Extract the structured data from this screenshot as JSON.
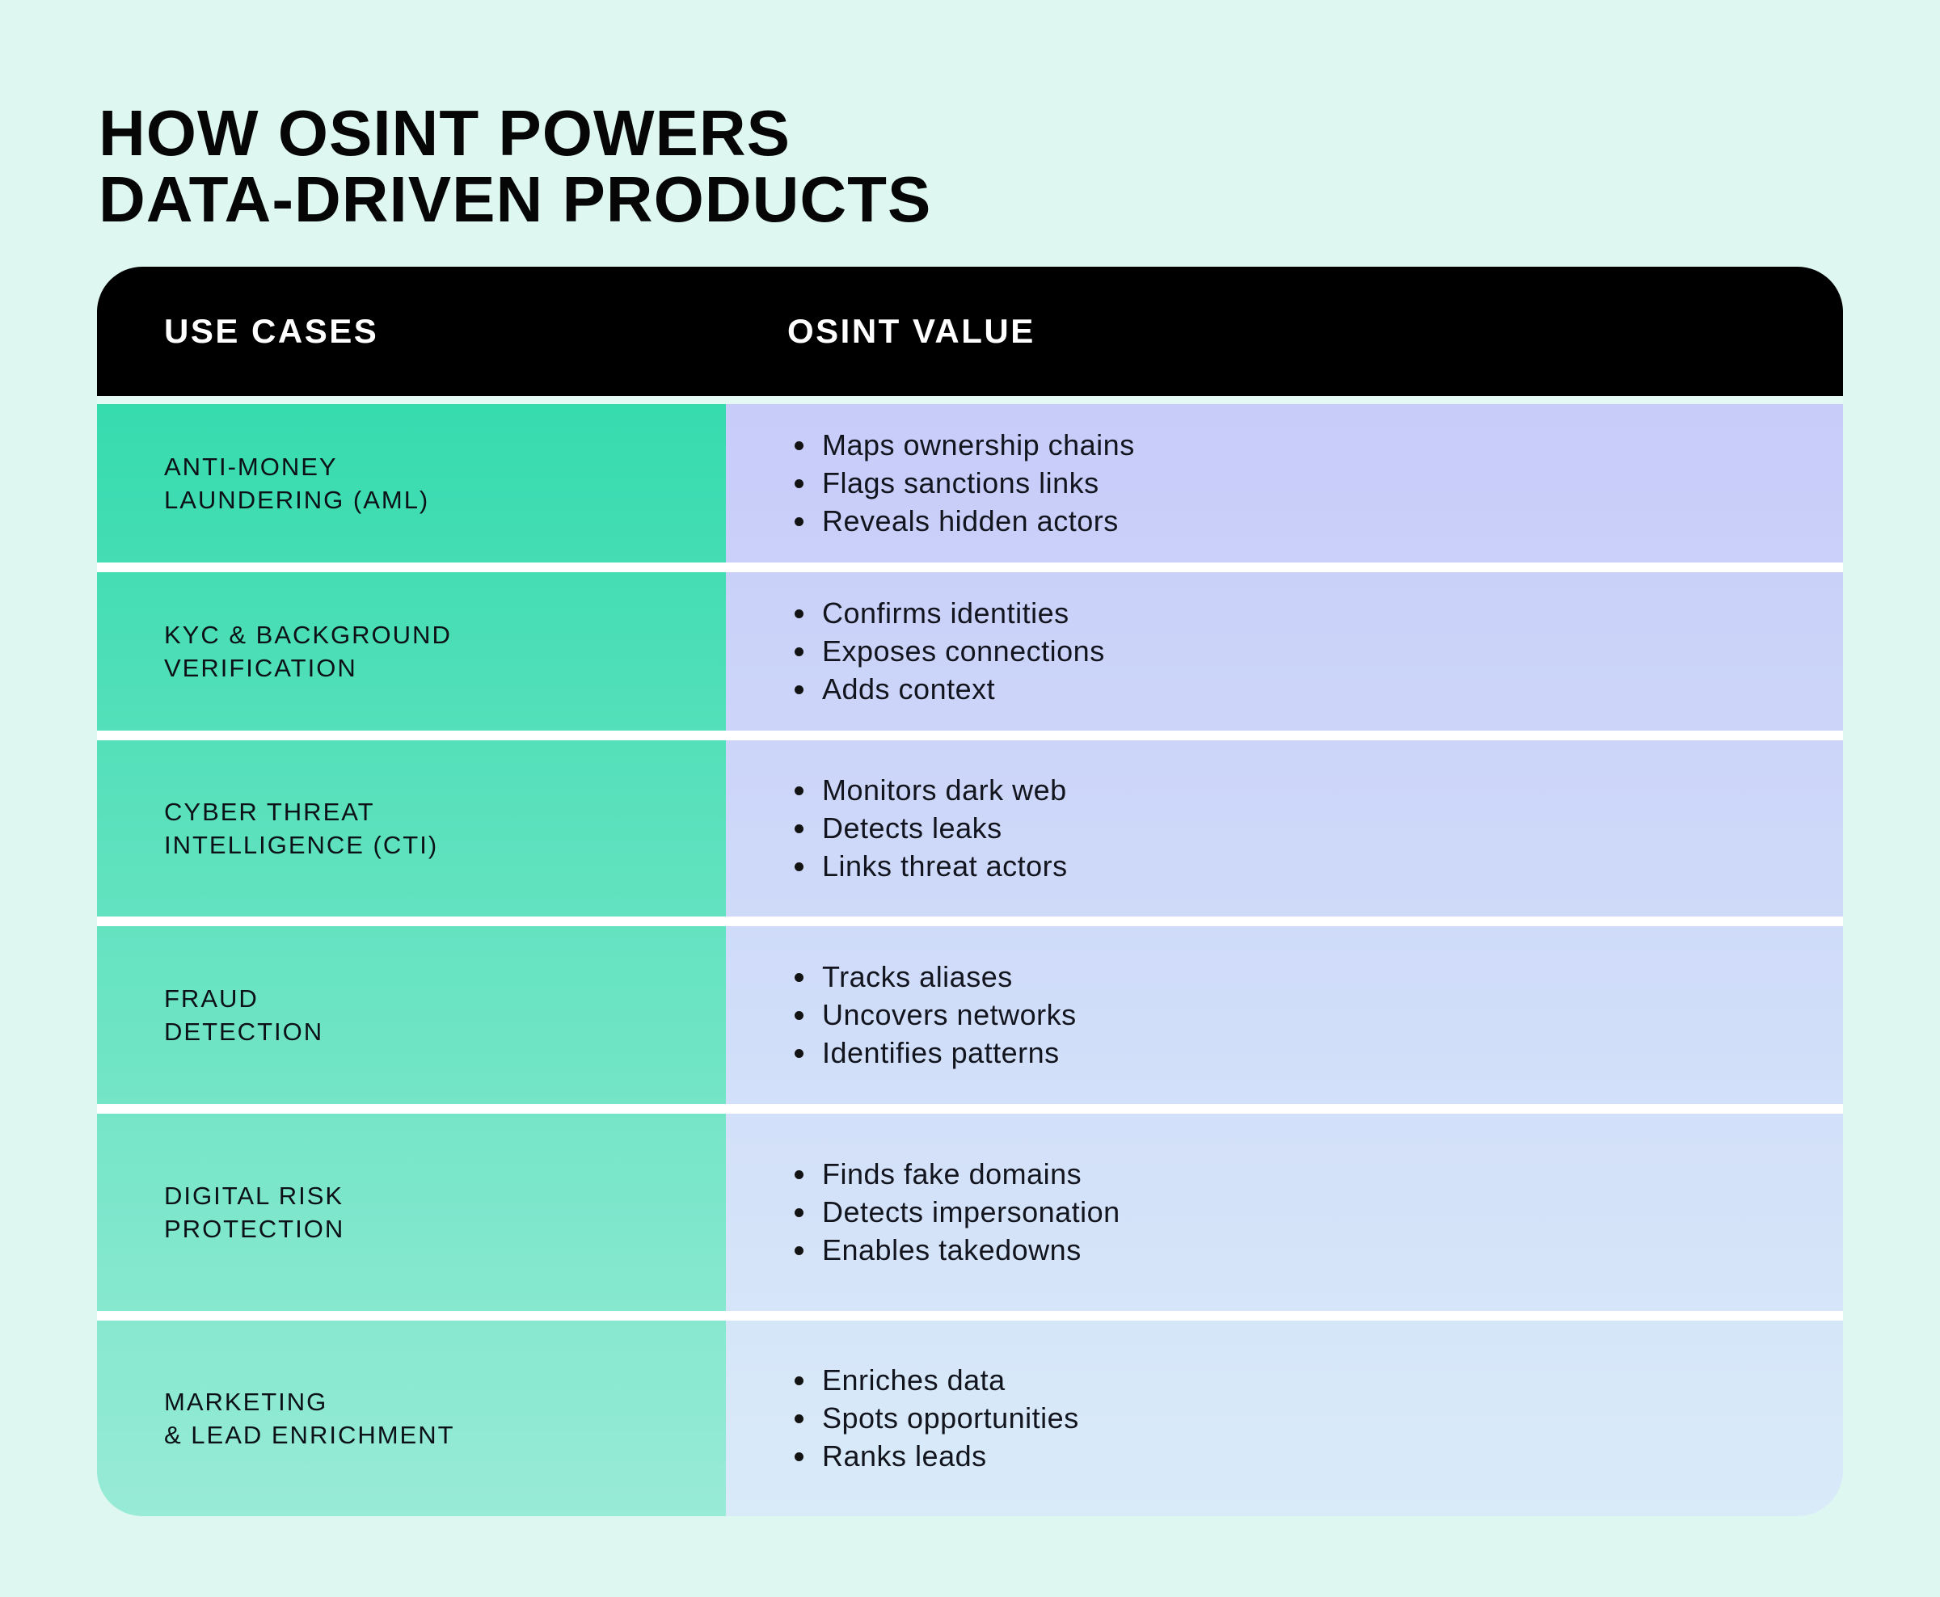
{
  "page": {
    "background": "#dff7f1",
    "accent_teal": "#36dbae",
    "accent_lavender": "#c7ccf9",
    "header_background": "#000000",
    "header_text_color": "#ffffff"
  },
  "title": {
    "text": "HOW OSINT POWERS\nDATA-DRIVEN PRODUCTS"
  },
  "table": {
    "header": {
      "col1": "USE CASES",
      "col2": "OSINT VALUE"
    },
    "rows": [
      {
        "use_case": "ANTI-MONEY\nLAUNDERING (AML)",
        "bullets": [
          "Maps ownership chains",
          "Flags sanctions links",
          "Reveals hidden actors"
        ],
        "colors": {
          "left": [
            "#36dbae",
            "#44ddb4"
          ],
          "right": [
            "#c7ccf9",
            "#cad0f9"
          ]
        }
      },
      {
        "use_case": "KYC & BACKGROUND\nVERIFICATION",
        "bullets": [
          "Confirms identities",
          "Exposes connections",
          "Adds context"
        ],
        "colors": {
          "left": [
            "#45ddb4",
            "#53e0ba"
          ],
          "right": [
            "#cad1f9",
            "#ccd5f9"
          ]
        }
      },
      {
        "use_case": "CYBER THREAT\nINTELLIGENCE (CTI)",
        "bullets": [
          "Monitors dark web",
          "Detects leaks",
          "Links threat actors"
        ],
        "colors": {
          "left": [
            "#54e0ba",
            "#63e2c0"
          ],
          "right": [
            "#ccd5f9",
            "#cfdaf9"
          ]
        }
      },
      {
        "use_case": "FRAUD\nDETECTION",
        "bullets": [
          "Tracks aliases",
          "Uncovers networks",
          "Identifies patterns"
        ],
        "colors": {
          "left": [
            "#64e3c1",
            "#74e5c7"
          ],
          "right": [
            "#cfdbf9",
            "#d2e0f9"
          ]
        }
      },
      {
        "use_case": "DIGITAL RISK\nPROTECTION",
        "bullets": [
          "Finds fake domains",
          "Detects impersonation",
          "Enables takedowns"
        ],
        "colors": {
          "left": [
            "#75e5c8",
            "#86e8cf"
          ],
          "right": [
            "#d3e0f9",
            "#d6e5f9"
          ]
        }
      },
      {
        "use_case": "MARKETING\n& LEAD ENRICHMENT",
        "bullets": [
          "Enriches data",
          "Spots opportunities",
          "Ranks leads"
        ],
        "colors": {
          "left": [
            "#87e8cf",
            "#98ebd6"
          ],
          "right": [
            "#d6e6f9",
            "#d9ebf9"
          ]
        }
      }
    ]
  },
  "chart_data": {
    "type": "table",
    "title": "How OSINT Powers Data-Driven Products",
    "columns": [
      "USE CASES",
      "OSINT VALUE"
    ],
    "rows": [
      {
        "use_case": "Anti-Money Laundering (AML)",
        "osint_value": [
          "Maps ownership chains",
          "Flags sanctions links",
          "Reveals hidden actors"
        ]
      },
      {
        "use_case": "KYC & Background Verification",
        "osint_value": [
          "Confirms identities",
          "Exposes connections",
          "Adds context"
        ]
      },
      {
        "use_case": "Cyber Threat Intelligence (CTI)",
        "osint_value": [
          "Monitors dark web",
          "Detects leaks",
          "Links threat actors"
        ]
      },
      {
        "use_case": "Fraud Detection",
        "osint_value": [
          "Tracks aliases",
          "Uncovers networks",
          "Identifies patterns"
        ]
      },
      {
        "use_case": "Digital Risk Protection",
        "osint_value": [
          "Finds fake domains",
          "Detects impersonation",
          "Enables takedowns"
        ]
      },
      {
        "use_case": "Marketing & Lead Enrichment",
        "osint_value": [
          "Enriches data",
          "Spots opportunities",
          "Ranks leads"
        ]
      }
    ]
  }
}
